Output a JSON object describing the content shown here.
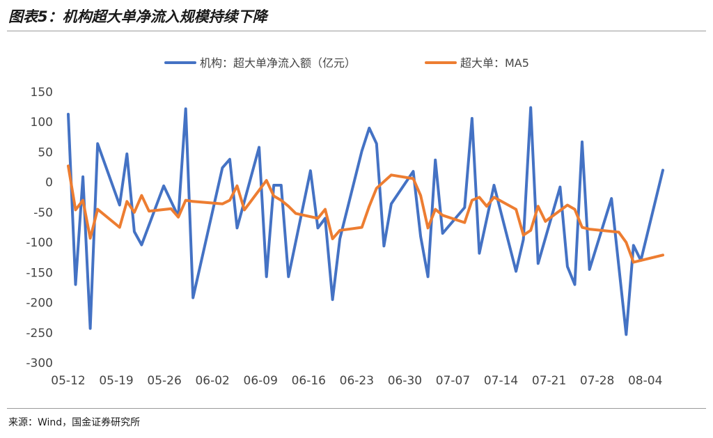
{
  "header": {
    "title": "图表5：机构超大单净流入规模持续下降"
  },
  "footer": {
    "source": "来源：Wind，国金证券研究所"
  },
  "colors": {
    "series1": "#4472c4",
    "series2": "#ed7d31"
  },
  "chart_data": {
    "type": "line",
    "title": "",
    "xlabel": "",
    "ylabel": "",
    "ylim": [
      -300,
      150
    ],
    "y_ticks": [
      150,
      100,
      50,
      0,
      -50,
      -100,
      -150,
      -200,
      -250,
      -300
    ],
    "y_tick_labels": [
      "150",
      "100",
      "50",
      "0",
      "-50",
      "-100",
      "-150",
      "-200",
      "-250",
      "-300"
    ],
    "x_tick_labels": [
      "05-12",
      "05-19",
      "05-26",
      "06-02",
      "06-09",
      "06-16",
      "06-23",
      "06-30",
      "07-07",
      "07-14",
      "07-21",
      "07-28",
      "08-04"
    ],
    "grid": false,
    "legend": "top",
    "series": [
      {
        "name": "机构：超大单净流入额（亿元）",
        "points": [
          [
            0,
            113
          ],
          [
            1,
            -170
          ],
          [
            2,
            9
          ],
          [
            3,
            -243
          ],
          [
            4,
            64
          ],
          [
            7,
            -38
          ],
          [
            8,
            47
          ],
          [
            9,
            -82
          ],
          [
            10,
            -104
          ],
          [
            13,
            -6
          ],
          [
            15,
            -57
          ],
          [
            16,
            122
          ],
          [
            17,
            -192
          ],
          [
            21,
            24
          ],
          [
            22,
            38
          ],
          [
            23,
            -76
          ],
          [
            26,
            58
          ],
          [
            27,
            -157
          ],
          [
            28,
            -5
          ],
          [
            29,
            -5
          ],
          [
            30,
            -157
          ],
          [
            33,
            19
          ],
          [
            34,
            -76
          ],
          [
            35,
            -60
          ],
          [
            36,
            -195
          ],
          [
            37,
            -94
          ],
          [
            40,
            52
          ],
          [
            41,
            90
          ],
          [
            42,
            64
          ],
          [
            43,
            -106
          ],
          [
            44,
            -36
          ],
          [
            47,
            18
          ],
          [
            48,
            -90
          ],
          [
            49,
            -157
          ],
          [
            50,
            37
          ],
          [
            51,
            -85
          ],
          [
            54,
            -42
          ],
          [
            55,
            106
          ],
          [
            56,
            -118
          ],
          [
            58,
            -5
          ],
          [
            61,
            -148
          ],
          [
            62,
            -95
          ],
          [
            63,
            124
          ],
          [
            64,
            -135
          ],
          [
            67,
            -8
          ],
          [
            68,
            -140
          ],
          [
            69,
            -170
          ],
          [
            70,
            67
          ],
          [
            71,
            -145
          ],
          [
            74,
            -27
          ],
          [
            76,
            -253
          ],
          [
            77,
            -105
          ],
          [
            78,
            -130
          ],
          [
            81,
            20
          ]
        ]
      },
      {
        "name": "超大单：MA5",
        "points": [
          [
            0,
            27
          ],
          [
            1,
            -46
          ],
          [
            2,
            -30
          ],
          [
            3,
            -93
          ],
          [
            4,
            -45
          ],
          [
            7,
            -75
          ],
          [
            8,
            -32
          ],
          [
            9,
            -50
          ],
          [
            10,
            -22
          ],
          [
            11,
            -48
          ],
          [
            14,
            -44
          ],
          [
            15,
            -58
          ],
          [
            16,
            -30
          ],
          [
            17,
            -32
          ],
          [
            21,
            -36
          ],
          [
            22,
            -30
          ],
          [
            23,
            -6
          ],
          [
            24,
            -46
          ],
          [
            27,
            3
          ],
          [
            28,
            -23
          ],
          [
            29,
            -30
          ],
          [
            30,
            -40
          ],
          [
            31,
            -52
          ],
          [
            34,
            -60
          ],
          [
            35,
            -45
          ],
          [
            36,
            -94
          ],
          [
            37,
            -80
          ],
          [
            40,
            -75
          ],
          [
            41,
            -40
          ],
          [
            42,
            -10
          ],
          [
            44,
            12
          ],
          [
            47,
            6
          ],
          [
            48,
            -22
          ],
          [
            49,
            -76
          ],
          [
            50,
            -45
          ],
          [
            51,
            -55
          ],
          [
            54,
            -67
          ],
          [
            55,
            -30
          ],
          [
            56,
            -25
          ],
          [
            57,
            -40
          ],
          [
            58,
            -25
          ],
          [
            61,
            -45
          ],
          [
            62,
            -88
          ],
          [
            63,
            -80
          ],
          [
            64,
            -40
          ],
          [
            65,
            -65
          ],
          [
            68,
            -38
          ],
          [
            69,
            -45
          ],
          [
            70,
            -75
          ],
          [
            71,
            -78
          ],
          [
            75,
            -83
          ],
          [
            76,
            -100
          ],
          [
            77,
            -133
          ],
          [
            81,
            -121
          ]
        ]
      }
    ]
  }
}
